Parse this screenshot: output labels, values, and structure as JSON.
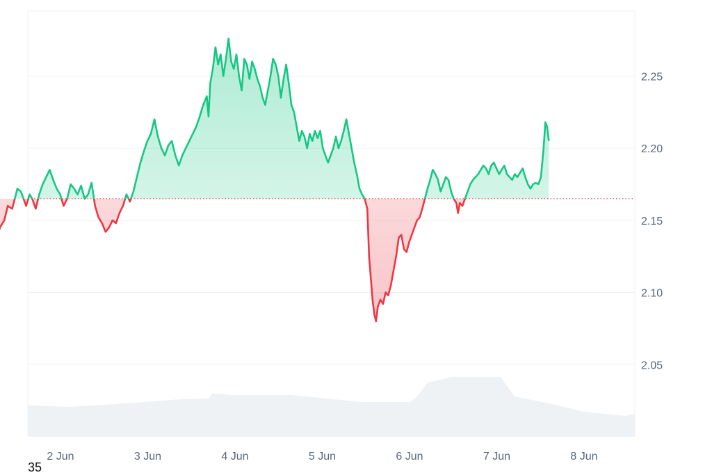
{
  "corner_label": "35",
  "colors": {
    "up": "#16c784",
    "down": "#ea3943",
    "grid": "#eff2f5",
    "volume": "#eff2f5",
    "baseline": "#ea3943",
    "text": "#58667e"
  },
  "chart_data": {
    "type": "line",
    "title": "",
    "xlabel": "",
    "ylabel": "",
    "ylim": [
      2.0,
      2.295
    ],
    "baseline": 2.165,
    "grid": true,
    "y_ticks": [
      {
        "label": "2.25",
        "value": 2.25
      },
      {
        "label": "2.20",
        "value": 2.2
      },
      {
        "label": "2.15",
        "value": 2.15
      },
      {
        "label": "2.10",
        "value": 2.1
      },
      {
        "label": "2.05",
        "value": 2.05
      }
    ],
    "x_ticks": [
      {
        "label": "2 Jun",
        "t": 1.0
      },
      {
        "label": "3 Jun",
        "t": 2.0
      },
      {
        "label": "4 Jun",
        "t": 3.0
      },
      {
        "label": "5 Jun",
        "t": 4.0
      },
      {
        "label": "6 Jun",
        "t": 5.0
      },
      {
        "label": "7 Jun",
        "t": 6.0
      },
      {
        "label": "8 Jun",
        "t": 7.0
      }
    ],
    "xlim": [
      0.0,
      7.6
    ],
    "series": [
      {
        "points": [
          [
            0.0,
            2.165
          ],
          [
            0.05,
            2.158
          ],
          [
            0.1,
            2.145
          ],
          [
            0.12,
            2.135
          ],
          [
            0.18,
            2.138
          ],
          [
            0.22,
            2.147
          ],
          [
            0.28,
            2.134
          ],
          [
            0.33,
            2.145
          ],
          [
            0.38,
            2.15
          ],
          [
            0.42,
            2.16
          ],
          [
            0.47,
            2.158
          ],
          [
            0.5,
            2.165
          ],
          [
            0.53,
            2.172
          ],
          [
            0.57,
            2.17
          ],
          [
            0.6,
            2.165
          ],
          [
            0.63,
            2.16
          ],
          [
            0.67,
            2.168
          ],
          [
            0.7,
            2.165
          ],
          [
            0.74,
            2.158
          ],
          [
            0.78,
            2.168
          ],
          [
            0.82,
            2.175
          ],
          [
            0.86,
            2.18
          ],
          [
            0.9,
            2.185
          ],
          [
            0.94,
            2.178
          ],
          [
            0.98,
            2.172
          ],
          [
            1.02,
            2.168
          ],
          [
            1.06,
            2.16
          ],
          [
            1.1,
            2.165
          ],
          [
            1.14,
            2.175
          ],
          [
            1.18,
            2.172
          ],
          [
            1.22,
            2.168
          ],
          [
            1.26,
            2.174
          ],
          [
            1.3,
            2.165
          ],
          [
            1.34,
            2.168
          ],
          [
            1.38,
            2.176
          ],
          [
            1.42,
            2.16
          ],
          [
            1.46,
            2.152
          ],
          [
            1.5,
            2.148
          ],
          [
            1.54,
            2.142
          ],
          [
            1.58,
            2.145
          ],
          [
            1.62,
            2.15
          ],
          [
            1.66,
            2.148
          ],
          [
            1.7,
            2.155
          ],
          [
            1.74,
            2.16
          ],
          [
            1.78,
            2.168
          ],
          [
            1.82,
            2.163
          ],
          [
            1.86,
            2.17
          ],
          [
            1.9,
            2.18
          ],
          [
            1.94,
            2.19
          ],
          [
            1.98,
            2.198
          ],
          [
            2.02,
            2.205
          ],
          [
            2.06,
            2.21
          ],
          [
            2.1,
            2.22
          ],
          [
            2.14,
            2.208
          ],
          [
            2.18,
            2.2
          ],
          [
            2.22,
            2.195
          ],
          [
            2.26,
            2.202
          ],
          [
            2.3,
            2.205
          ],
          [
            2.34,
            2.195
          ],
          [
            2.38,
            2.188
          ],
          [
            2.42,
            2.195
          ],
          [
            2.46,
            2.2
          ],
          [
            2.5,
            2.205
          ],
          [
            2.54,
            2.21
          ],
          [
            2.58,
            2.215
          ],
          [
            2.62,
            2.222
          ],
          [
            2.66,
            2.23
          ],
          [
            2.7,
            2.236
          ],
          [
            2.72,
            2.222
          ],
          [
            2.74,
            2.245
          ],
          [
            2.77,
            2.255
          ],
          [
            2.8,
            2.27
          ],
          [
            2.83,
            2.258
          ],
          [
            2.86,
            2.265
          ],
          [
            2.89,
            2.25
          ],
          [
            2.92,
            2.262
          ],
          [
            2.95,
            2.276
          ],
          [
            2.98,
            2.26
          ],
          [
            3.01,
            2.255
          ],
          [
            3.04,
            2.265
          ],
          [
            3.07,
            2.25
          ],
          [
            3.1,
            2.24
          ],
          [
            3.13,
            2.262
          ],
          [
            3.16,
            2.258
          ],
          [
            3.19,
            2.248
          ],
          [
            3.22,
            2.26
          ],
          [
            3.25,
            2.255
          ],
          [
            3.28,
            2.248
          ],
          [
            3.31,
            2.243
          ],
          [
            3.34,
            2.235
          ],
          [
            3.37,
            2.23
          ],
          [
            3.4,
            2.24
          ],
          [
            3.43,
            2.25
          ],
          [
            3.46,
            2.262
          ],
          [
            3.49,
            2.258
          ],
          [
            3.52,
            2.25
          ],
          [
            3.55,
            2.235
          ],
          [
            3.58,
            2.248
          ],
          [
            3.61,
            2.258
          ],
          [
            3.64,
            2.245
          ],
          [
            3.67,
            2.23
          ],
          [
            3.7,
            2.225
          ],
          [
            3.73,
            2.215
          ],
          [
            3.76,
            2.205
          ],
          [
            3.79,
            2.212
          ],
          [
            3.82,
            2.208
          ],
          [
            3.85,
            2.2
          ],
          [
            3.88,
            2.21
          ],
          [
            3.91,
            2.205
          ],
          [
            3.94,
            2.212
          ],
          [
            3.97,
            2.207
          ],
          [
            4.0,
            2.212
          ],
          [
            4.03,
            2.2
          ],
          [
            4.06,
            2.195
          ],
          [
            4.09,
            2.19
          ],
          [
            4.12,
            2.195
          ],
          [
            4.15,
            2.2
          ],
          [
            4.18,
            2.208
          ],
          [
            4.21,
            2.2
          ],
          [
            4.24,
            2.205
          ],
          [
            4.27,
            2.212
          ],
          [
            4.3,
            2.22
          ],
          [
            4.33,
            2.21
          ],
          [
            4.36,
            2.2
          ],
          [
            4.39,
            2.19
          ],
          [
            4.42,
            2.182
          ],
          [
            4.45,
            2.172
          ],
          [
            4.48,
            2.168
          ],
          [
            4.51,
            2.165
          ],
          [
            4.54,
            2.158
          ],
          [
            4.56,
            2.125
          ],
          [
            4.58,
            2.11
          ],
          [
            4.6,
            2.095
          ],
          [
            4.62,
            2.085
          ],
          [
            4.64,
            2.08
          ],
          [
            4.66,
            2.09
          ],
          [
            4.69,
            2.095
          ],
          [
            4.72,
            2.092
          ],
          [
            4.75,
            2.1
          ],
          [
            4.78,
            2.098
          ],
          [
            4.81,
            2.105
          ],
          [
            4.84,
            2.115
          ],
          [
            4.87,
            2.125
          ],
          [
            4.9,
            2.138
          ],
          [
            4.93,
            2.14
          ],
          [
            4.96,
            2.13
          ],
          [
            4.99,
            2.128
          ],
          [
            5.02,
            2.135
          ],
          [
            5.05,
            2.14
          ],
          [
            5.08,
            2.145
          ],
          [
            5.11,
            2.15
          ],
          [
            5.14,
            2.152
          ],
          [
            5.17,
            2.158
          ],
          [
            5.2,
            2.165
          ],
          [
            5.23,
            2.172
          ],
          [
            5.26,
            2.178
          ],
          [
            5.29,
            2.185
          ],
          [
            5.32,
            2.182
          ],
          [
            5.35,
            2.178
          ],
          [
            5.38,
            2.17
          ],
          [
            5.41,
            2.175
          ],
          [
            5.44,
            2.18
          ],
          [
            5.47,
            2.178
          ],
          [
            5.5,
            2.17
          ],
          [
            5.53,
            2.165
          ],
          [
            5.56,
            2.162
          ],
          [
            5.58,
            2.155
          ],
          [
            5.6,
            2.162
          ],
          [
            5.63,
            2.16
          ],
          [
            5.66,
            2.165
          ],
          [
            5.69,
            2.17
          ],
          [
            5.72,
            2.175
          ],
          [
            5.75,
            2.178
          ],
          [
            5.78,
            2.18
          ],
          [
            5.81,
            2.182
          ],
          [
            5.84,
            2.185
          ],
          [
            5.87,
            2.188
          ],
          [
            5.9,
            2.186
          ],
          [
            5.93,
            2.182
          ],
          [
            5.96,
            2.188
          ],
          [
            5.99,
            2.19
          ],
          [
            6.02,
            2.186
          ],
          [
            6.05,
            2.182
          ],
          [
            6.08,
            2.185
          ],
          [
            6.11,
            2.188
          ],
          [
            6.14,
            2.182
          ],
          [
            6.17,
            2.18
          ],
          [
            6.2,
            2.178
          ],
          [
            6.23,
            2.182
          ],
          [
            6.26,
            2.18
          ],
          [
            6.29,
            2.183
          ],
          [
            6.32,
            2.186
          ],
          [
            6.35,
            2.18
          ],
          [
            6.38,
            2.175
          ],
          [
            6.41,
            2.172
          ],
          [
            6.44,
            2.175
          ],
          [
            6.47,
            2.176
          ],
          [
            6.5,
            2.175
          ],
          [
            6.53,
            2.18
          ],
          [
            6.56,
            2.2
          ],
          [
            6.58,
            2.218
          ],
          [
            6.6,
            2.215
          ],
          [
            6.62,
            2.205
          ]
        ]
      }
    ]
  }
}
